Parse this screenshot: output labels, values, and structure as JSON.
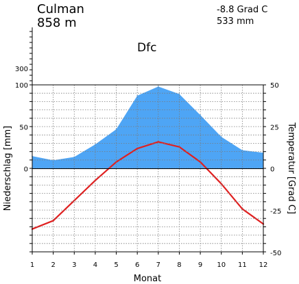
{
  "header": {
    "station": "Culman",
    "elevation": "858 m",
    "mean_temperature": "-8.8 Grad C",
    "annual_precipitation": "533 mm",
    "climate_class": "Dfc"
  },
  "chart_data": {
    "type": "area",
    "title": "",
    "xlabel": "Monat",
    "ylabel_left": "Niederschlag [mm]",
    "ylabel_right": "Temperatur [Grad C]",
    "categories": [
      1,
      2,
      3,
      4,
      5,
      6,
      7,
      8,
      9,
      10,
      11,
      12
    ],
    "x_tick_labels": [
      "1",
      "2",
      "3",
      "4",
      "5",
      "6",
      "7",
      "8",
      "9",
      "10",
      "11",
      "12"
    ],
    "precip_ticks": [
      "100",
      "50",
      "0"
    ],
    "precip_extra_tick": "300",
    "temp_ticks": [
      "50",
      "25",
      "0",
      "-25",
      "-50"
    ],
    "ylim_precip": [
      0,
      100
    ],
    "ylim_temp": [
      -50,
      50
    ],
    "grid": true,
    "colors": {
      "precipitation": "#4ea5f5",
      "temperature": "#e02020",
      "grid": "#7a7a7a"
    },
    "series": [
      {
        "key": "precipitation",
        "unit": "mm",
        "axis": "left",
        "values": [
          15,
          10,
          14,
          29,
          47,
          87,
          98,
          89,
          64,
          38,
          22,
          19
        ]
      },
      {
        "key": "temperature",
        "unit": "Grad C",
        "axis": "right",
        "values": [
          -36,
          -31,
          -19,
          -7,
          4,
          12,
          16,
          13,
          4,
          -9,
          -24,
          -33
        ]
      }
    ]
  }
}
